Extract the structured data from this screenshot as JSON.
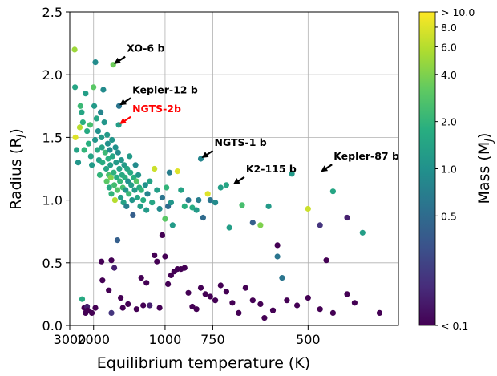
{
  "chart_data": {
    "type": "scatter",
    "title": "",
    "xlabel": "Equilibrium temperature (K)",
    "ylabel": "Radius (R",
    "ylabel_sub": "J",
    "ylabel_close": ")",
    "x_scale": "reciprocal",
    "xlim": [
      3000,
      380
    ],
    "ylim": [
      0.0,
      2.5
    ],
    "grid": true,
    "x_ticks": [
      3000,
      2000,
      1000,
      750,
      500
    ],
    "x_tick_labels": [
      "3000",
      "2000",
      "1000",
      "750",
      "500"
    ],
    "y_ticks": [
      0.0,
      0.5,
      1.0,
      1.5,
      2.0,
      2.5
    ],
    "y_tick_labels": [
      "0.0",
      "0.5",
      "1.0",
      "1.5",
      "2.0",
      "2.5"
    ],
    "colorbar": {
      "label": "Mass (M",
      "label_sub": "J",
      "label_close": ")",
      "scale": "log",
      "range": [
        0.1,
        10
      ],
      "colormap": "viridis",
      "ticks": [
        10,
        8,
        6,
        4,
        2,
        1,
        0.5,
        0.1
      ],
      "tick_labels": [
        "> 10.0",
        "8.0",
        "6.0",
        "4.0",
        "2.0",
        "1.0",
        "0.5",
        "< 0.1"
      ]
    },
    "annotations": [
      {
        "label": "XO-6 b",
        "x": 1570,
        "y": 2.08,
        "color": "#000000"
      },
      {
        "label": "Kepler-12 b",
        "x": 1480,
        "y": 1.75,
        "color": "#000000"
      },
      {
        "label": "NGTS-2b",
        "x": 1480,
        "y": 1.6,
        "color": "#ff0000"
      },
      {
        "label": "NGTS-1 b",
        "x": 800,
        "y": 1.33,
        "color": "#000000"
      },
      {
        "label": "K2-115 b",
        "x": 680,
        "y": 1.12,
        "color": "#000000"
      },
      {
        "label": "Kepler-87 b",
        "x": 480,
        "y": 1.22,
        "color": "#000000"
      }
    ],
    "points": [
      [
        2720,
        2.2,
        5
      ],
      [
        2700,
        1.9,
        1.5
      ],
      [
        2680,
        1.5,
        8
      ],
      [
        2620,
        1.4,
        1.4
      ],
      [
        2550,
        1.3,
        1.1
      ],
      [
        2480,
        1.58,
        6
      ],
      [
        2450,
        1.75,
        2.2
      ],
      [
        2400,
        1.7,
        1.5
      ],
      [
        2350,
        1.62,
        1.8
      ],
      [
        2300,
        1.4,
        2
      ],
      [
        2250,
        1.85,
        1.3
      ],
      [
        2200,
        1.55,
        1.6
      ],
      [
        2150,
        1.45,
        1.8
      ],
      [
        2100,
        1.6,
        2.5
      ],
      [
        2080,
        1.35,
        1.4
      ],
      [
        2050,
        1.28,
        1.2
      ],
      [
        2000,
        1.9,
        3
      ],
      [
        1980,
        1.75,
        1.2
      ],
      [
        1960,
        1.48,
        1.1
      ],
      [
        1950,
        2.1,
        0.9
      ],
      [
        1920,
        1.65,
        1.5
      ],
      [
        1900,
        1.4,
        1.6
      ],
      [
        1880,
        1.55,
        1.0
      ],
      [
        1860,
        1.32,
        1.3
      ],
      [
        1840,
        1.2,
        2
      ],
      [
        1820,
        1.7,
        0.8
      ],
      [
        1800,
        1.5,
        1.2
      ],
      [
        1790,
        1.42,
        1.4
      ],
      [
        1780,
        1.3,
        1.7
      ],
      [
        1760,
        1.88,
        0.9
      ],
      [
        1740,
        1.62,
        1.1
      ],
      [
        1720,
        1.38,
        2.2
      ],
      [
        1700,
        1.25,
        1.5
      ],
      [
        1690,
        1.15,
        3
      ],
      [
        1680,
        1.52,
        1.2
      ],
      [
        1670,
        1.45,
        1.0
      ],
      [
        1660,
        1.33,
        1.8
      ],
      [
        1650,
        1.2,
        2.6
      ],
      [
        1640,
        1.1,
        1.6
      ],
      [
        1630,
        1.4,
        0.9
      ],
      [
        1620,
        1.28,
        1.3
      ],
      [
        1610,
        1.18,
        4
      ],
      [
        1600,
        1.05,
        2
      ],
      [
        1590,
        1.48,
        1.1
      ],
      [
        1580,
        1.35,
        1.5
      ],
      [
        1570,
        2.08,
        3.5
      ],
      [
        1560,
        1.22,
        1.9
      ],
      [
        1550,
        1.12,
        2.4
      ],
      [
        1540,
        1.0,
        6
      ],
      [
        1530,
        1.42,
        1.0
      ],
      [
        1520,
        1.3,
        1.2
      ],
      [
        1510,
        1.18,
        1.7
      ],
      [
        1500,
        1.08,
        2.8
      ],
      [
        1490,
        1.38,
        0.9
      ],
      [
        1480,
        1.6,
        1.3
      ],
      [
        1475,
        1.75,
        0.6
      ],
      [
        1470,
        1.25,
        1.4
      ],
      [
        1460,
        1.15,
        2.1
      ],
      [
        1450,
        1.02,
        1.3
      ],
      [
        1440,
        1.32,
        1.1
      ],
      [
        1430,
        1.2,
        1.6
      ],
      [
        1420,
        1.1,
        2.5
      ],
      [
        1410,
        0.98,
        1.4
      ],
      [
        1400,
        1.28,
        1.2
      ],
      [
        1390,
        1.18,
        1.8
      ],
      [
        1380,
        1.08,
        1.1
      ],
      [
        1370,
        0.95,
        0.7
      ],
      [
        1360,
        1.25,
        1.5
      ],
      [
        1350,
        1.15,
        1.0
      ],
      [
        1340,
        1.05,
        2.2
      ],
      [
        1330,
        1.35,
        1.2
      ],
      [
        1320,
        1.22,
        1.6
      ],
      [
        1310,
        1.12,
        1.3
      ],
      [
        1300,
        1.0,
        1.1
      ],
      [
        1290,
        0.88,
        0.4
      ],
      [
        1280,
        1.18,
        1.8
      ],
      [
        1270,
        1.08,
        1.2
      ],
      [
        1260,
        1.28,
        0.9
      ],
      [
        1250,
        1.15,
        2.8
      ],
      [
        1240,
        1.02,
        1.5
      ],
      [
        1230,
        1.2,
        1.1
      ],
      [
        1220,
        1.1,
        1.6
      ],
      [
        1210,
        0.95,
        1.3
      ],
      [
        1200,
        1.08,
        2
      ],
      [
        1180,
        1.0,
        1.7
      ],
      [
        1160,
        1.12,
        1.0
      ],
      [
        1150,
        0.92,
        1.2
      ],
      [
        1140,
        1.05,
        0.8
      ],
      [
        1120,
        1.15,
        1.4
      ],
      [
        1100,
        0.98,
        1.5
      ],
      [
        1080,
        1.25,
        7
      ],
      [
        1060,
        1.08,
        1.3
      ],
      [
        1040,
        0.93,
        0.9
      ],
      [
        1020,
        1.02,
        0.6
      ],
      [
        1000,
        0.85,
        3
      ],
      [
        990,
        1.1,
        2
      ],
      [
        980,
        0.95,
        0.5
      ],
      [
        970,
        1.22,
        0.7
      ],
      [
        960,
        0.98,
        1.1
      ],
      [
        950,
        0.8,
        1.2
      ],
      [
        920,
        1.23,
        8
      ],
      [
        900,
        1.08,
        1.4
      ],
      [
        880,
        0.95,
        1.8
      ],
      [
        860,
        1.0,
        0.6
      ],
      [
        840,
        0.94,
        1.7
      ],
      [
        820,
        0.92,
        1.2
      ],
      [
        810,
        1.0,
        0.7
      ],
      [
        800,
        1.33,
        0.8
      ],
      [
        790,
        0.86,
        0.5
      ],
      [
        770,
        1.05,
        8
      ],
      [
        760,
        1.0,
        0.6
      ],
      [
        740,
        0.98,
        0.9
      ],
      [
        720,
        1.1,
        1.3
      ],
      [
        700,
        1.12,
        1.5
      ],
      [
        690,
        0.78,
        1.3
      ],
      [
        650,
        0.96,
        2.5
      ],
      [
        620,
        0.82,
        0.4
      ],
      [
        600,
        0.8,
        4
      ],
      [
        580,
        0.95,
        1.2
      ],
      [
        560,
        0.55,
        0.6
      ],
      [
        550,
        0.38,
        0.6
      ],
      [
        530,
        1.21,
        1.2
      ],
      [
        500,
        0.93,
        7
      ],
      [
        480,
        0.8,
        0.2
      ],
      [
        460,
        1.07,
        1.5
      ],
      [
        440,
        0.86,
        0.15
      ],
      [
        420,
        0.74,
        1.3
      ],
      [
        2380,
        0.21,
        1.6
      ],
      [
        2300,
        0.14,
        0.1
      ],
      [
        2250,
        0.1,
        0.1
      ],
      [
        2200,
        0.15,
        0.15
      ],
      [
        2180,
        0.12,
        0.1
      ],
      [
        2050,
        0.1,
        0.1
      ],
      [
        1950,
        0.14,
        0.1
      ],
      [
        1800,
        0.51,
        0.1
      ],
      [
        1780,
        0.36,
        0.1
      ],
      [
        1650,
        0.28,
        0.1
      ],
      [
        1600,
        0.52,
        0.1
      ],
      [
        1550,
        0.46,
        0.15
      ],
      [
        1600,
        0.1,
        0.2
      ],
      [
        1500,
        0.68,
        0.4
      ],
      [
        1450,
        0.22,
        0.1
      ],
      [
        1420,
        0.14,
        0.1
      ],
      [
        1350,
        0.17,
        0.1
      ],
      [
        1250,
        0.13,
        0.1
      ],
      [
        1200,
        0.38,
        0.1
      ],
      [
        1180,
        0.16,
        0.1
      ],
      [
        1150,
        0.34,
        0.1
      ],
      [
        1120,
        0.16,
        0.15
      ],
      [
        1080,
        0.56,
        0.1
      ],
      [
        1060,
        0.51,
        0.1
      ],
      [
        1040,
        0.14,
        0.1
      ],
      [
        1020,
        0.72,
        0.1
      ],
      [
        1000,
        0.55,
        0.1
      ],
      [
        980,
        0.33,
        0.1
      ],
      [
        960,
        0.4,
        0.1
      ],
      [
        940,
        0.43,
        0.1
      ],
      [
        920,
        0.45,
        0.1
      ],
      [
        900,
        0.45,
        0.1
      ],
      [
        880,
        0.46,
        0.1
      ],
      [
        860,
        0.26,
        0.1
      ],
      [
        840,
        0.15,
        0.1
      ],
      [
        820,
        0.13,
        0.1
      ],
      [
        800,
        0.3,
        0.1
      ],
      [
        780,
        0.25,
        0.1
      ],
      [
        760,
        0.23,
        0.1
      ],
      [
        740,
        0.2,
        0.1
      ],
      [
        720,
        0.32,
        0.1
      ],
      [
        700,
        0.27,
        0.1
      ],
      [
        680,
        0.18,
        0.1
      ],
      [
        660,
        0.1,
        0.1
      ],
      [
        640,
        0.3,
        0.1
      ],
      [
        620,
        0.2,
        0.1
      ],
      [
        600,
        0.17,
        0.1
      ],
      [
        590,
        0.06,
        0.1
      ],
      [
        570,
        0.12,
        0.1
      ],
      [
        560,
        0.64,
        0.1
      ],
      [
        540,
        0.2,
        0.1
      ],
      [
        520,
        0.16,
        0.1
      ],
      [
        500,
        0.22,
        0.1
      ],
      [
        480,
        0.13,
        0.1
      ],
      [
        470,
        0.52,
        0.1
      ],
      [
        460,
        0.1,
        0.1
      ],
      [
        440,
        0.25,
        0.1
      ],
      [
        430,
        0.18,
        0.1
      ],
      [
        400,
        0.1,
        0.1
      ]
    ]
  }
}
